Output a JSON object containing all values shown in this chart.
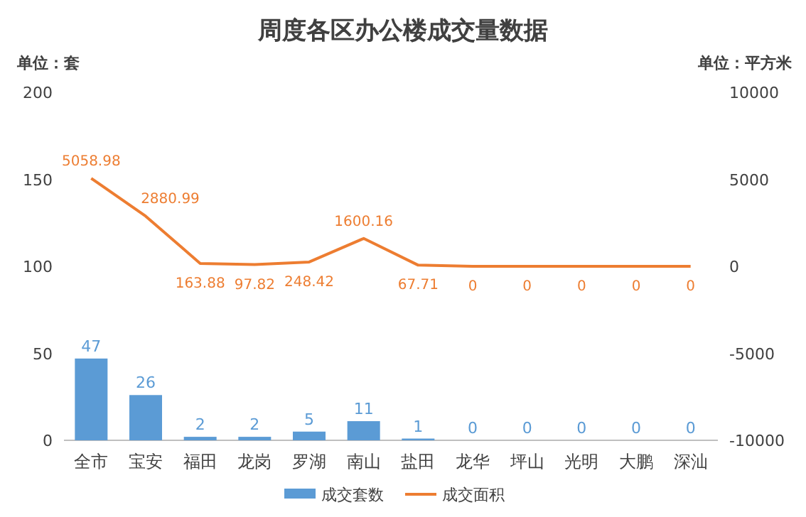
{
  "chart_data": {
    "type": "bar",
    "title": "周度各区办公楼成交量数据",
    "annotations": [
      "单位：套",
      "单位：平方米"
    ],
    "categories": [
      "全市",
      "宝安",
      "福田",
      "龙岗",
      "罗湖",
      "南山",
      "盐田",
      "龙华",
      "坪山",
      "光明",
      "大鹏",
      "深汕"
    ],
    "series": [
      {
        "name": "成交套数",
        "color": "#5b9bd5",
        "values": [
          47,
          26,
          2,
          2,
          5,
          11,
          1,
          0,
          0,
          0,
          0,
          0
        ]
      },
      {
        "name": "成交面积",
        "type": "line",
        "axis": "y2",
        "color": "#ed7d31",
        "values": [
          5058.98,
          2880.99,
          163.88,
          97.82,
          248.42,
          1600.16,
          67.71,
          0,
          0,
          0,
          0,
          0
        ]
      }
    ],
    "ylim": [
      0,
      200
    ],
    "yticks": [
      0,
      50,
      100,
      150,
      200
    ],
    "y2lim": [
      -10000,
      10000
    ],
    "y2ticks": [
      -10000,
      -5000,
      0,
      5000,
      10000
    ],
    "data_labels": true,
    "legend": "bottom",
    "grid": false,
    "marker": "none",
    "line_style": "solid"
  }
}
